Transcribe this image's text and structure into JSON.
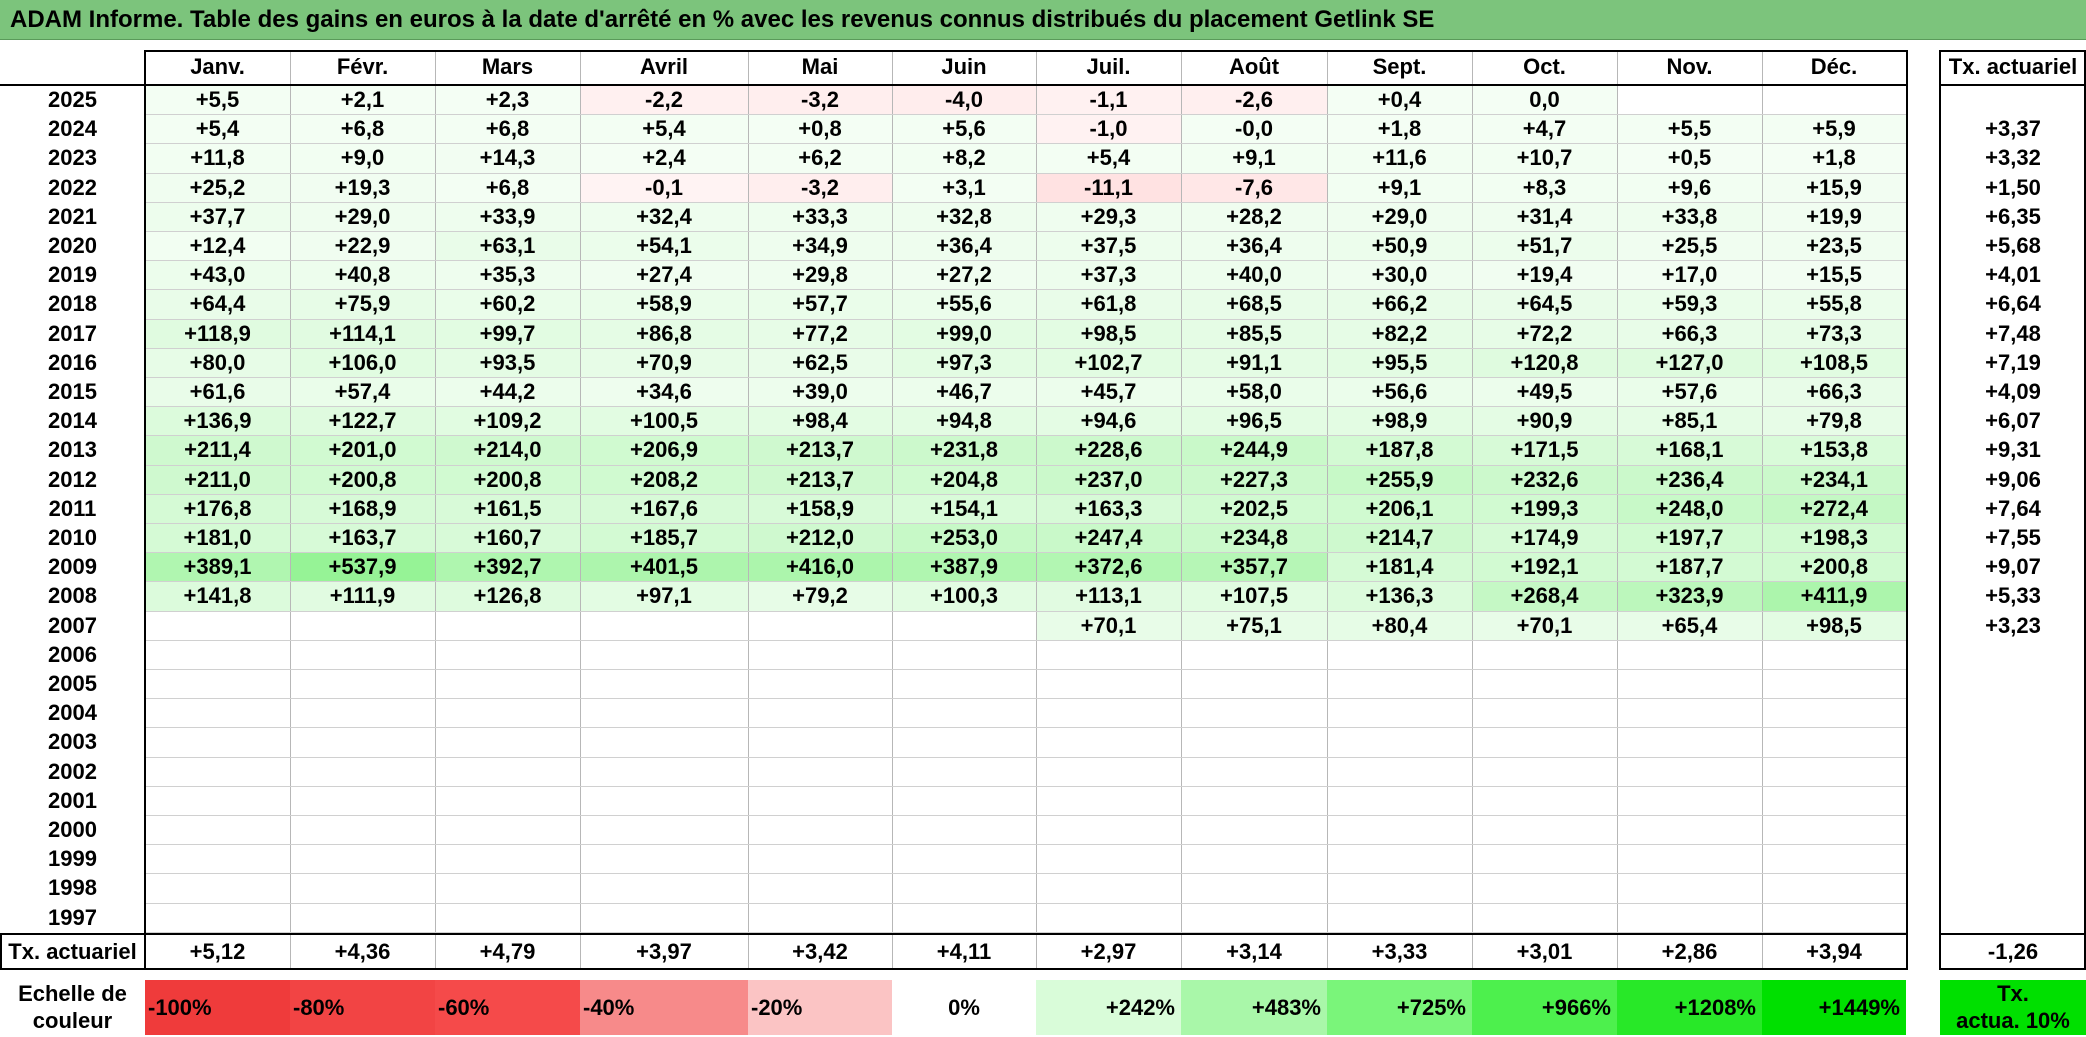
{
  "title": "ADAM Informe. Table des gains en euros à la date d'arrêté en % avec les revenus connus distribués du placement Getlink SE",
  "months": [
    "Janv.",
    "Févr.",
    "Mars",
    "Avril",
    "Mai",
    "Juin",
    "Juil.",
    "Août",
    "Sept.",
    "Oct.",
    "Nov.",
    "Déc."
  ],
  "annual_header": "Tx. actuariel",
  "chart_data": {
    "type": "table",
    "title": "ADAM Informe. Table des gains en euros à la date d'arrêté en % avec les revenus connus distribués du placement Getlink SE",
    "columns": [
      "Janv.",
      "Févr.",
      "Mars",
      "Avril",
      "Mai",
      "Juin",
      "Juil.",
      "Août",
      "Sept.",
      "Oct.",
      "Nov.",
      "Déc.",
      "Tx. actuariel"
    ],
    "rows": [
      {
        "year": "2025",
        "values": [
          "+5,5",
          "+2,1",
          "+2,3",
          "-2,2",
          "-3,2",
          "-4,0",
          "-1,1",
          "-2,6",
          "+0,4",
          "0,0",
          "",
          ""
        ],
        "rate": ""
      },
      {
        "year": "2024",
        "values": [
          "+5,4",
          "+6,8",
          "+6,8",
          "+5,4",
          "+0,8",
          "+5,6",
          "-1,0",
          "-0,0",
          "+1,8",
          "+4,7",
          "+5,5",
          "+5,9"
        ],
        "rate": "+3,37"
      },
      {
        "year": "2023",
        "values": [
          "+11,8",
          "+9,0",
          "+14,3",
          "+2,4",
          "+6,2",
          "+8,2",
          "+5,4",
          "+9,1",
          "+11,6",
          "+10,7",
          "+0,5",
          "+1,8"
        ],
        "rate": "+3,32"
      },
      {
        "year": "2022",
        "values": [
          "+25,2",
          "+19,3",
          "+6,8",
          "-0,1",
          "-3,2",
          "+3,1",
          "-11,1",
          "-7,6",
          "+9,1",
          "+8,3",
          "+9,6",
          "+15,9"
        ],
        "rate": "+1,50"
      },
      {
        "year": "2021",
        "values": [
          "+37,7",
          "+29,0",
          "+33,9",
          "+32,4",
          "+33,3",
          "+32,8",
          "+29,3",
          "+28,2",
          "+29,0",
          "+31,4",
          "+33,8",
          "+19,9"
        ],
        "rate": "+6,35"
      },
      {
        "year": "2020",
        "values": [
          "+12,4",
          "+22,9",
          "+63,1",
          "+54,1",
          "+34,9",
          "+36,4",
          "+37,5",
          "+36,4",
          "+50,9",
          "+51,7",
          "+25,5",
          "+23,5"
        ],
        "rate": "+5,68"
      },
      {
        "year": "2019",
        "values": [
          "+43,0",
          "+40,8",
          "+35,3",
          "+27,4",
          "+29,8",
          "+27,2",
          "+37,3",
          "+40,0",
          "+30,0",
          "+19,4",
          "+17,0",
          "+15,5"
        ],
        "rate": "+4,01"
      },
      {
        "year": "2018",
        "values": [
          "+64,4",
          "+75,9",
          "+60,2",
          "+58,9",
          "+57,7",
          "+55,6",
          "+61,8",
          "+68,5",
          "+66,2",
          "+64,5",
          "+59,3",
          "+55,8"
        ],
        "rate": "+6,64"
      },
      {
        "year": "2017",
        "values": [
          "+118,9",
          "+114,1",
          "+99,7",
          "+86,8",
          "+77,2",
          "+99,0",
          "+98,5",
          "+85,5",
          "+82,2",
          "+72,2",
          "+66,3",
          "+73,3"
        ],
        "rate": "+7,48"
      },
      {
        "year": "2016",
        "values": [
          "+80,0",
          "+106,0",
          "+93,5",
          "+70,9",
          "+62,5",
          "+97,3",
          "+102,7",
          "+91,1",
          "+95,5",
          "+120,8",
          "+127,0",
          "+108,5"
        ],
        "rate": "+7,19"
      },
      {
        "year": "2015",
        "values": [
          "+61,6",
          "+57,4",
          "+44,2",
          "+34,6",
          "+39,0",
          "+46,7",
          "+45,7",
          "+58,0",
          "+56,6",
          "+49,5",
          "+57,6",
          "+66,3"
        ],
        "rate": "+4,09"
      },
      {
        "year": "2014",
        "values": [
          "+136,9",
          "+122,7",
          "+109,2",
          "+100,5",
          "+98,4",
          "+94,8",
          "+94,6",
          "+96,5",
          "+98,9",
          "+90,9",
          "+85,1",
          "+79,8"
        ],
        "rate": "+6,07"
      },
      {
        "year": "2013",
        "values": [
          "+211,4",
          "+201,0",
          "+214,0",
          "+206,9",
          "+213,7",
          "+231,8",
          "+228,6",
          "+244,9",
          "+187,8",
          "+171,5",
          "+168,1",
          "+153,8"
        ],
        "rate": "+9,31"
      },
      {
        "year": "2012",
        "values": [
          "+211,0",
          "+200,8",
          "+200,8",
          "+208,2",
          "+213,7",
          "+204,8",
          "+237,0",
          "+227,3",
          "+255,9",
          "+232,6",
          "+236,4",
          "+234,1"
        ],
        "rate": "+9,06"
      },
      {
        "year": "2011",
        "values": [
          "+176,8",
          "+168,9",
          "+161,5",
          "+167,6",
          "+158,9",
          "+154,1",
          "+163,3",
          "+202,5",
          "+206,1",
          "+199,3",
          "+248,0",
          "+272,4"
        ],
        "rate": "+7,64"
      },
      {
        "year": "2010",
        "values": [
          "+181,0",
          "+163,7",
          "+160,7",
          "+185,7",
          "+212,0",
          "+253,0",
          "+247,4",
          "+234,8",
          "+214,7",
          "+174,9",
          "+197,7",
          "+198,3"
        ],
        "rate": "+7,55"
      },
      {
        "year": "2009",
        "values": [
          "+389,1",
          "+537,9",
          "+392,7",
          "+401,5",
          "+416,0",
          "+387,9",
          "+372,6",
          "+357,7",
          "+181,4",
          "+192,1",
          "+187,7",
          "+200,8"
        ],
        "rate": "+9,07"
      },
      {
        "year": "2008",
        "values": [
          "+141,8",
          "+111,9",
          "+126,8",
          "+97,1",
          "+79,2",
          "+100,3",
          "+113,1",
          "+107,5",
          "+136,3",
          "+268,4",
          "+323,9",
          "+411,9"
        ],
        "rate": "+5,33"
      },
      {
        "year": "2007",
        "values": [
          "",
          "",
          "",
          "",
          "",
          "",
          "+70,1",
          "+75,1",
          "+80,4",
          "+70,1",
          "+65,4",
          "+98,5"
        ],
        "rate": "+3,23"
      },
      {
        "year": "2006",
        "values": [
          "",
          "",
          "",
          "",
          "",
          "",
          "",
          "",
          "",
          "",
          "",
          ""
        ],
        "rate": ""
      },
      {
        "year": "2005",
        "values": [
          "",
          "",
          "",
          "",
          "",
          "",
          "",
          "",
          "",
          "",
          "",
          ""
        ],
        "rate": ""
      },
      {
        "year": "2004",
        "values": [
          "",
          "",
          "",
          "",
          "",
          "",
          "",
          "",
          "",
          "",
          "",
          ""
        ],
        "rate": ""
      },
      {
        "year": "2003",
        "values": [
          "",
          "",
          "",
          "",
          "",
          "",
          "",
          "",
          "",
          "",
          "",
          ""
        ],
        "rate": ""
      },
      {
        "year": "2002",
        "values": [
          "",
          "",
          "",
          "",
          "",
          "",
          "",
          "",
          "",
          "",
          "",
          ""
        ],
        "rate": ""
      },
      {
        "year": "2001",
        "values": [
          "",
          "",
          "",
          "",
          "",
          "",
          "",
          "",
          "",
          "",
          "",
          ""
        ],
        "rate": ""
      },
      {
        "year": "2000",
        "values": [
          "",
          "",
          "",
          "",
          "",
          "",
          "",
          "",
          "",
          "",
          "",
          ""
        ],
        "rate": ""
      },
      {
        "year": "1999",
        "values": [
          "",
          "",
          "",
          "",
          "",
          "",
          "",
          "",
          "",
          "",
          "",
          ""
        ],
        "rate": ""
      },
      {
        "year": "1998",
        "values": [
          "",
          "",
          "",
          "",
          "",
          "",
          "",
          "",
          "",
          "",
          "",
          ""
        ],
        "rate": ""
      },
      {
        "year": "1997",
        "values": [
          "",
          "",
          "",
          "",
          "",
          "",
          "",
          "",
          "",
          "",
          "",
          ""
        ],
        "rate": ""
      }
    ],
    "footer_label": "Tx. actuariel",
    "footer_values": [
      "+5,12",
      "+4,36",
      "+4,79",
      "+3,97",
      "+3,42",
      "+4,11",
      "+2,97",
      "+3,14",
      "+3,33",
      "+3,01",
      "+2,86",
      "+3,94"
    ],
    "footer_total": "-1,26"
  },
  "scale": {
    "label_line1": "Echelle de",
    "label_line2": "couleur",
    "steps": [
      "-100%",
      "-80%",
      "-60%",
      "-40%",
      "-20%",
      "0%",
      "+242%",
      "+483%",
      "+725%",
      "+966%",
      "+1208%",
      "+1449%"
    ],
    "step_colors": [
      "#ef3b3b",
      "#f24444",
      "#f54a4a",
      "#f78a8a",
      "#fbc4c4",
      "#ffffff",
      "#d9fcd9",
      "#a9f7a9",
      "#7af57a",
      "#4df04d",
      "#28e828",
      "#00e000"
    ],
    "annual_line1": "Tx.",
    "annual_line2": "actua. 10%",
    "annual_color": "#00e000"
  },
  "colors": {
    "title_bg": "#7cc47c",
    "negative_base": "#ff0000",
    "positive_base": "#00e000"
  }
}
